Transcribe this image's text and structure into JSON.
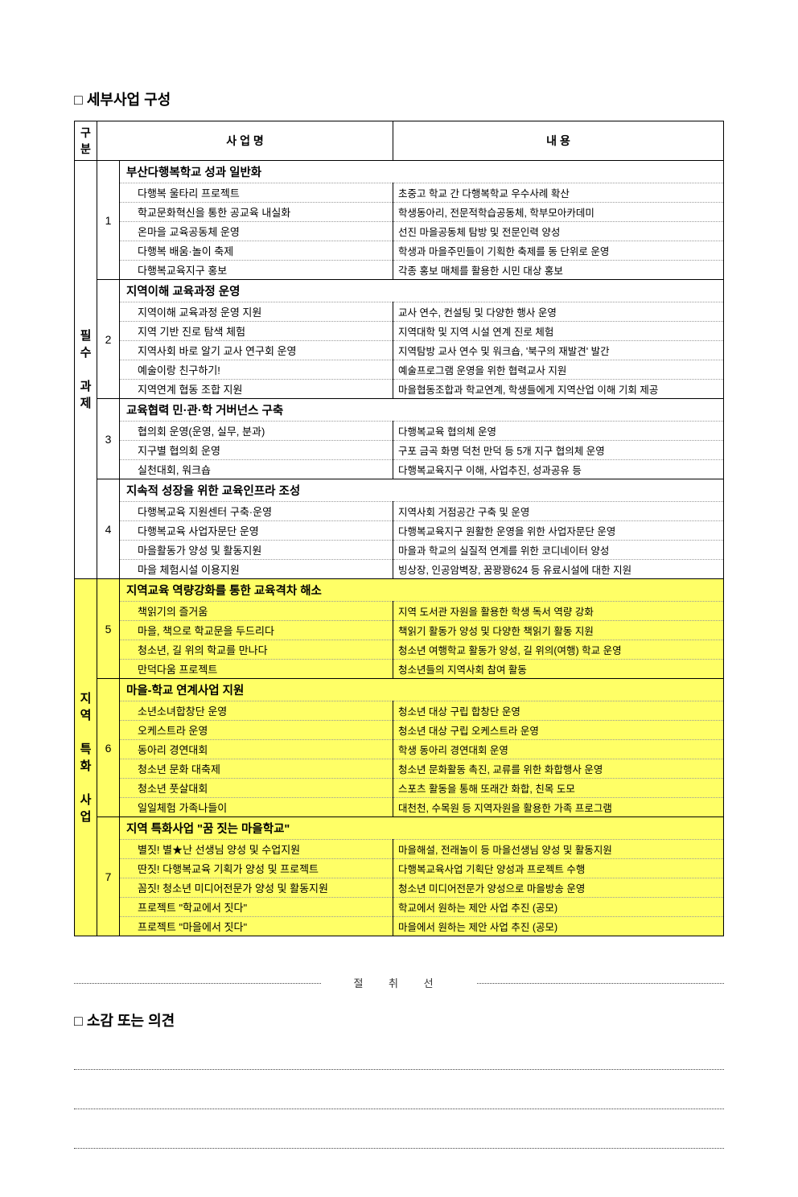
{
  "title1": "세부사업 구성",
  "headers": {
    "cat": "구분",
    "name": "사 업 명",
    "desc": "내  용"
  },
  "categories": [
    {
      "label": "필수 과제",
      "bg": "#ffffff",
      "highlight": false
    },
    {
      "label": "지역 특화 사업",
      "bg": "#ffff66",
      "highlight": true
    }
  ],
  "groups": [
    {
      "cat": 0,
      "num": "1",
      "header": "부산다행복학교 성과 일반화",
      "items": [
        {
          "name": "다행복 울타리 프로젝트",
          "desc": "초중고 학교 간 다행복학교 우수사례 확산"
        },
        {
          "name": "학교문화혁신을 통한 공교육 내실화",
          "desc": "학생동아리, 전문적학습공동체, 학부모아카데미"
        },
        {
          "name": "온마을 교육공동체 운영",
          "desc": "선진 마을공동체 탐방 및 전문인력 양성"
        },
        {
          "name": "다행복 배움·놀이 축제",
          "desc": "학생과 마을주민들이 기획한 축제를 동 단위로 운영"
        },
        {
          "name": "다행복교육지구 홍보",
          "desc": "각종 홍보 매체를 활용한 시민 대상 홍보"
        }
      ]
    },
    {
      "cat": 0,
      "num": "2",
      "header": "지역이해 교육과정 운영",
      "items": [
        {
          "name": "지역이해 교육과정 운영 지원",
          "desc": "교사 연수, 컨설팅 및 다양한 행사 운영"
        },
        {
          "name": "지역 기반 진로 탐색 체험",
          "desc": "지역대학 및 지역 시설 연계 진로 체험"
        },
        {
          "name": "지역사회 바로 알기 교사 연구회 운영",
          "desc": "지역탐방 교사 연수 및 워크숍, '북구의 재발견' 발간"
        },
        {
          "name": "예술이랑 친구하기!",
          "desc": "예술프로그램 운영을 위한 협력교사 지원"
        },
        {
          "name": "지역연계 협동 조합 지원",
          "desc": "마을협동조합과 학교연계, 학생들에게 지역산업 이해 기회 제공"
        }
      ]
    },
    {
      "cat": 0,
      "num": "3",
      "header": "교육협력 민·관·학 거버넌스 구축",
      "items": [
        {
          "name": "협의회 운영(운영, 실무, 분과)",
          "desc": "다행복교육 협의체 운영"
        },
        {
          "name": "지구별 협의회 운영",
          "desc": "구포 금곡 화명 덕천 만덕 등 5개 지구 협의체 운영"
        },
        {
          "name": "실천대회, 워크숍",
          "desc": "다행복교육지구 이해, 사업추진, 성과공유 등"
        }
      ]
    },
    {
      "cat": 0,
      "num": "4",
      "header": "지속적 성장을 위한 교육인프라 조성",
      "items": [
        {
          "name": "다행복교육 지원센터 구축·운영",
          "desc": "지역사회 거점공간 구축 및 운영"
        },
        {
          "name": "다행복교육 사업자문단 운영",
          "desc": "다행복교육지구 원활한 운영을 위한 사업자문단 운영"
        },
        {
          "name": "마을활동가 양성 및 활동지원",
          "desc": "마을과 학교의 실질적 연계를 위한 코디네이터 양성"
        },
        {
          "name": "마을 체험시설 이용지원",
          "desc": "빙상장, 인공암벽장, 꿈꽝꽝624 등 유료시설에 대한 지원"
        }
      ]
    },
    {
      "cat": 1,
      "num": "5",
      "header": "지역교육 역량강화를 통한 교육격차 해소",
      "items": [
        {
          "name": "책읽기의 즐거움",
          "desc": "지역 도서관 자원을 활용한 학생 독서 역량 강화"
        },
        {
          "name": "마을, 책으로 학교문을 두드리다",
          "desc": "책읽기 활동가 양성 및 다양한 책읽기 활동 지원"
        },
        {
          "name": "청소년, 길 위의 학교를 만나다",
          "desc": "청소년 여행학교 활동가 양성, 길 위의(여행) 학교 운영"
        },
        {
          "name": "만덕다움 프로젝트",
          "desc": "청소년들의 지역사회 참여 활동"
        }
      ]
    },
    {
      "cat": 1,
      "num": "6",
      "header": "마을-학교 연계사업 지원",
      "items": [
        {
          "name": "소년소녀합창단 운영",
          "desc": "청소년 대상 구립 합창단 운영"
        },
        {
          "name": "오케스트라 운영",
          "desc": "청소년 대상 구립 오케스트라 운영"
        },
        {
          "name": "동아리 경연대회",
          "desc": "학생 동아리 경연대회 운영"
        },
        {
          "name": "청소년 문화 대축제",
          "desc": "청소년 문화활동 촉진, 교류를 위한 화합행사 운영"
        },
        {
          "name": "청소년 풋살대회",
          "desc": "스포츠 활동을 통해 또래간 화합, 친목 도모"
        },
        {
          "name": "일일체험 가족나들이",
          "desc": "대천천, 수목원 등 지역자원을 활용한 가족 프로그램"
        }
      ]
    },
    {
      "cat": 1,
      "num": "7",
      "header": "지역 특화사업 \"꿈 짓는 마을학교\"",
      "items": [
        {
          "name": "별짓! 별★난 선생님 양성 및 수업지원",
          "desc": "마을해설, 전래놀이 등 마을선생님 양성 및 활동지원"
        },
        {
          "name": "딴짓! 다행복교육 기획가 양성 및 프로젝트",
          "desc": "다행복교육사업 기획단 양성과 프로젝트 수행"
        },
        {
          "name": "꼼짓! 청소년 미디어전문가 양성 및 활동지원",
          "desc": "청소년 미디어전문가 양성으로 마을방송 운영"
        },
        {
          "name": "프로젝트 \"학교에서 짓다\"",
          "desc": "학교에서 원하는 제안 사업 추진 (공모)"
        },
        {
          "name": "프로젝트 \"마을에서 짓다\"",
          "desc": "마을에서 원하는 제안 사업 추진 (공모)"
        }
      ]
    }
  ],
  "cutline": "절  취  선",
  "title2": "소감 또는 의견",
  "feedback_lines": 3
}
